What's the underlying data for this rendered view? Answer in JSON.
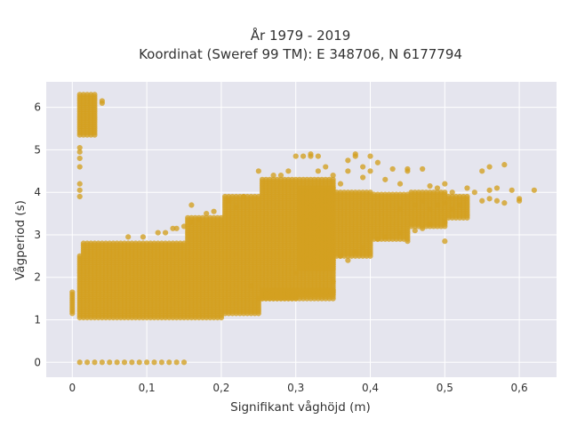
{
  "chart_data": {
    "type": "scatter",
    "title": "År 1979 - 2019",
    "subtitle": "Koordinat (Sweref 99 TM): E 348706, N 6177794",
    "xlabel": "Signifikant våghöjd (m)",
    "ylabel": "Vågperiod (s)",
    "xlim": [
      -0.035,
      0.65
    ],
    "ylim": [
      -0.35,
      6.6
    ],
    "x_ticks": [
      0,
      0.1,
      0.2,
      0.3,
      0.4,
      0.5,
      0.6
    ],
    "x_tick_labels": [
      "0",
      "0,1",
      "0,2",
      "0,3",
      "0,4",
      "0,5",
      "0,6"
    ],
    "y_ticks": [
      0,
      1,
      2,
      3,
      4,
      5,
      6
    ],
    "y_tick_labels": [
      "0",
      "1",
      "2",
      "3",
      "4",
      "5",
      "6"
    ],
    "grid": true,
    "legend": "none",
    "marker_color": "#d4a020",
    "plot_background": "#e5e5ee",
    "column_step": 0.005,
    "columns": [
      {
        "x0": 0.0,
        "x1": 0.0,
        "ymin": 1.15,
        "ymax": 1.65
      },
      {
        "x0": 0.01,
        "x1": 0.01,
        "ymin": 1.05,
        "ymax": 2.5
      },
      {
        "x0": 0.01,
        "x1": 0.03,
        "ymin": 5.35,
        "ymax": 6.3
      },
      {
        "x0": 0.015,
        "x1": 0.15,
        "ymin": 1.05,
        "ymax": 2.8
      },
      {
        "x0": 0.155,
        "x1": 0.2,
        "ymin": 1.05,
        "ymax": 3.4
      },
      {
        "x0": 0.205,
        "x1": 0.25,
        "ymin": 1.15,
        "ymax": 3.9
      },
      {
        "x0": 0.255,
        "x1": 0.3,
        "ymin": 1.5,
        "ymax": 4.3
      },
      {
        "x0": 0.305,
        "x1": 0.35,
        "ymin": 1.6,
        "ymax": 4.3
      },
      {
        "x0": 0.305,
        "x1": 0.35,
        "ymin": 2.2,
        "ymax": 4.1
      },
      {
        "x0": 0.355,
        "x1": 0.4,
        "ymin": 2.5,
        "ymax": 4.0
      },
      {
        "x0": 0.405,
        "x1": 0.45,
        "ymin": 2.9,
        "ymax": 3.95
      },
      {
        "x0": 0.455,
        "x1": 0.5,
        "ymin": 3.2,
        "ymax": 4.0
      },
      {
        "x0": 0.505,
        "x1": 0.53,
        "ymin": 3.4,
        "ymax": 3.9
      },
      {
        "x0": 0.255,
        "x1": 0.35,
        "ymin": 1.5,
        "ymax": 1.7
      }
    ],
    "zero_row": {
      "y": 0,
      "x_from": 0.01,
      "x_to": 0.15,
      "x_step": 0.01
    },
    "points": [
      [
        0.01,
        3.9
      ],
      [
        0.01,
        4.05
      ],
      [
        0.01,
        4.2
      ],
      [
        0.01,
        4.6
      ],
      [
        0.01,
        4.8
      ],
      [
        0.01,
        4.95
      ],
      [
        0.01,
        5.05
      ],
      [
        0.04,
        6.1
      ],
      [
        0.04,
        6.15
      ],
      [
        0.075,
        2.95
      ],
      [
        0.095,
        2.95
      ],
      [
        0.115,
        3.05
      ],
      [
        0.125,
        3.05
      ],
      [
        0.135,
        3.15
      ],
      [
        0.14,
        3.15
      ],
      [
        0.15,
        3.2
      ],
      [
        0.16,
        3.3
      ],
      [
        0.17,
        3.35
      ],
      [
        0.16,
        3.7
      ],
      [
        0.18,
        3.5
      ],
      [
        0.19,
        3.55
      ],
      [
        0.21,
        3.8
      ],
      [
        0.23,
        3.9
      ],
      [
        0.22,
        3.65
      ],
      [
        0.25,
        4.5
      ],
      [
        0.27,
        4.4
      ],
      [
        0.28,
        4.4
      ],
      [
        0.29,
        4.5
      ],
      [
        0.3,
        4.85
      ],
      [
        0.31,
        4.85
      ],
      [
        0.32,
        4.85
      ],
      [
        0.32,
        4.9
      ],
      [
        0.33,
        4.85
      ],
      [
        0.33,
        4.5
      ],
      [
        0.34,
        4.6
      ],
      [
        0.35,
        4.4
      ],
      [
        0.36,
        4.2
      ],
      [
        0.37,
        4.5
      ],
      [
        0.37,
        4.75
      ],
      [
        0.38,
        4.85
      ],
      [
        0.38,
        4.9
      ],
      [
        0.39,
        4.6
      ],
      [
        0.39,
        4.35
      ],
      [
        0.4,
        4.5
      ],
      [
        0.4,
        4.85
      ],
      [
        0.41,
        4.7
      ],
      [
        0.42,
        4.3
      ],
      [
        0.43,
        4.55
      ],
      [
        0.44,
        4.2
      ],
      [
        0.45,
        4.5
      ],
      [
        0.45,
        4.55
      ],
      [
        0.47,
        4.55
      ],
      [
        0.45,
        2.85
      ],
      [
        0.48,
        4.15
      ],
      [
        0.49,
        4.1
      ],
      [
        0.5,
        4.2
      ],
      [
        0.5,
        2.85
      ],
      [
        0.51,
        4.0
      ],
      [
        0.53,
        4.1
      ],
      [
        0.54,
        4.0
      ],
      [
        0.55,
        4.5
      ],
      [
        0.56,
        4.6
      ],
      [
        0.58,
        4.65
      ],
      [
        0.55,
        3.8
      ],
      [
        0.56,
        3.85
      ],
      [
        0.57,
        3.8
      ],
      [
        0.58,
        3.75
      ],
      [
        0.59,
        4.05
      ],
      [
        0.6,
        3.85
      ],
      [
        0.6,
        3.8
      ],
      [
        0.62,
        4.05
      ],
      [
        0.56,
        4.05
      ],
      [
        0.57,
        4.1
      ],
      [
        0.24,
        1.8
      ],
      [
        0.25,
        1.5
      ],
      [
        0.26,
        1.6
      ],
      [
        0.27,
        1.7
      ],
      [
        0.28,
        1.55
      ],
      [
        0.29,
        1.6
      ],
      [
        0.33,
        1.65
      ],
      [
        0.34,
        1.65
      ],
      [
        0.35,
        1.9
      ],
      [
        0.3,
        2.1
      ],
      [
        0.33,
        2.2
      ],
      [
        0.34,
        2.3
      ],
      [
        0.35,
        2.4
      ],
      [
        0.36,
        2.5
      ],
      [
        0.37,
        2.4
      ],
      [
        0.38,
        2.6
      ],
      [
        0.39,
        2.7
      ],
      [
        0.41,
        2.9
      ],
      [
        0.42,
        2.95
      ],
      [
        0.44,
        3.05
      ],
      [
        0.46,
        3.1
      ],
      [
        0.47,
        3.15
      ],
      [
        0.48,
        3.25
      ],
      [
        0.5,
        3.3
      ],
      [
        0.44,
        3.6
      ],
      [
        0.46,
        3.7
      ],
      [
        0.47,
        3.8
      ],
      [
        0.48,
        3.6
      ],
      [
        0.49,
        3.7
      ],
      [
        0.5,
        3.75
      ],
      [
        0.51,
        3.6
      ],
      [
        0.52,
        3.7
      ]
    ]
  }
}
